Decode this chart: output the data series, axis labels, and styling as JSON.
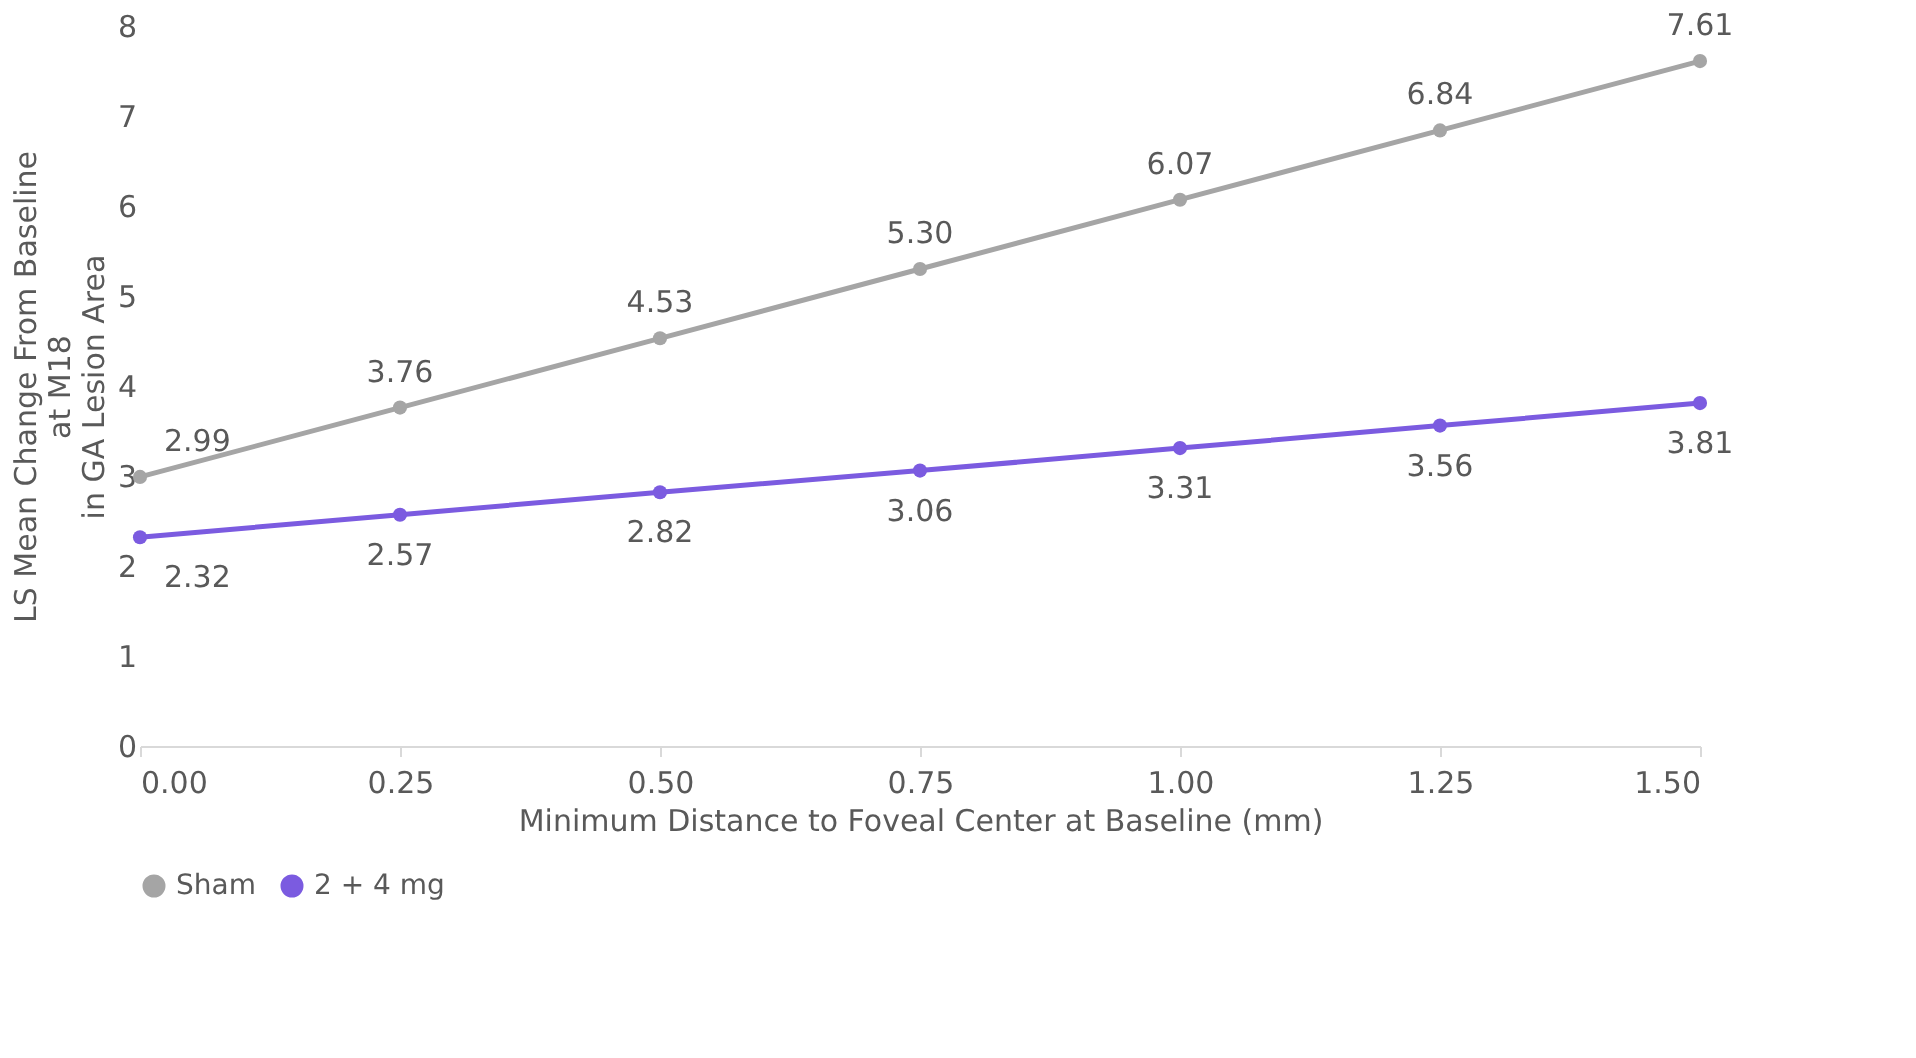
{
  "chart_data": {
    "type": "line",
    "xlabel": "Minimum Distance to Foveal Center at Baseline  (mm)",
    "ylabel": "LS Mean Change From Baseline\nat M18\nin GA Lesion Area",
    "x": [
      0,
      0.25,
      0.5,
      0.75,
      1.0,
      1.25,
      1.5
    ],
    "series": [
      {
        "name": "Sham",
        "color": "#a5a5a5",
        "values": [
          2.99,
          3.76,
          4.53,
          5.3,
          6.07,
          6.84,
          7.61
        ],
        "value_labels": [
          "2.99",
          "3.76",
          "4.53",
          "5.30",
          "6.07",
          "6.84",
          "7.61"
        ]
      },
      {
        "name": "2 + 4 mg",
        "color": "#7b5be0",
        "values": [
          2.32,
          2.57,
          2.82,
          3.06,
          3.31,
          3.56,
          3.81
        ],
        "value_labels": [
          "2.32",
          "2.57",
          "2.82",
          "3.06",
          "3.31",
          "3.56",
          "3.81"
        ]
      }
    ],
    "xlim": [
      0,
      1.5
    ],
    "xticks": [
      {
        "value": 0,
        "label": "0.00"
      },
      {
        "value": 0.25,
        "label": "0.25"
      },
      {
        "value": 0.5,
        "label": "0.50"
      },
      {
        "value": 0.75,
        "label": "0.75"
      },
      {
        "value": 1.0,
        "label": "1.00"
      },
      {
        "value": 1.25,
        "label": "1.25"
      },
      {
        "value": 1.5,
        "label": "1.50"
      }
    ],
    "ylim": [
      0,
      8
    ],
    "yticks": [
      0,
      1,
      2,
      3,
      4,
      5,
      6,
      7,
      8
    ],
    "grid": false,
    "legend": "bottom",
    "marker": "circle",
    "line_style": "solid"
  }
}
